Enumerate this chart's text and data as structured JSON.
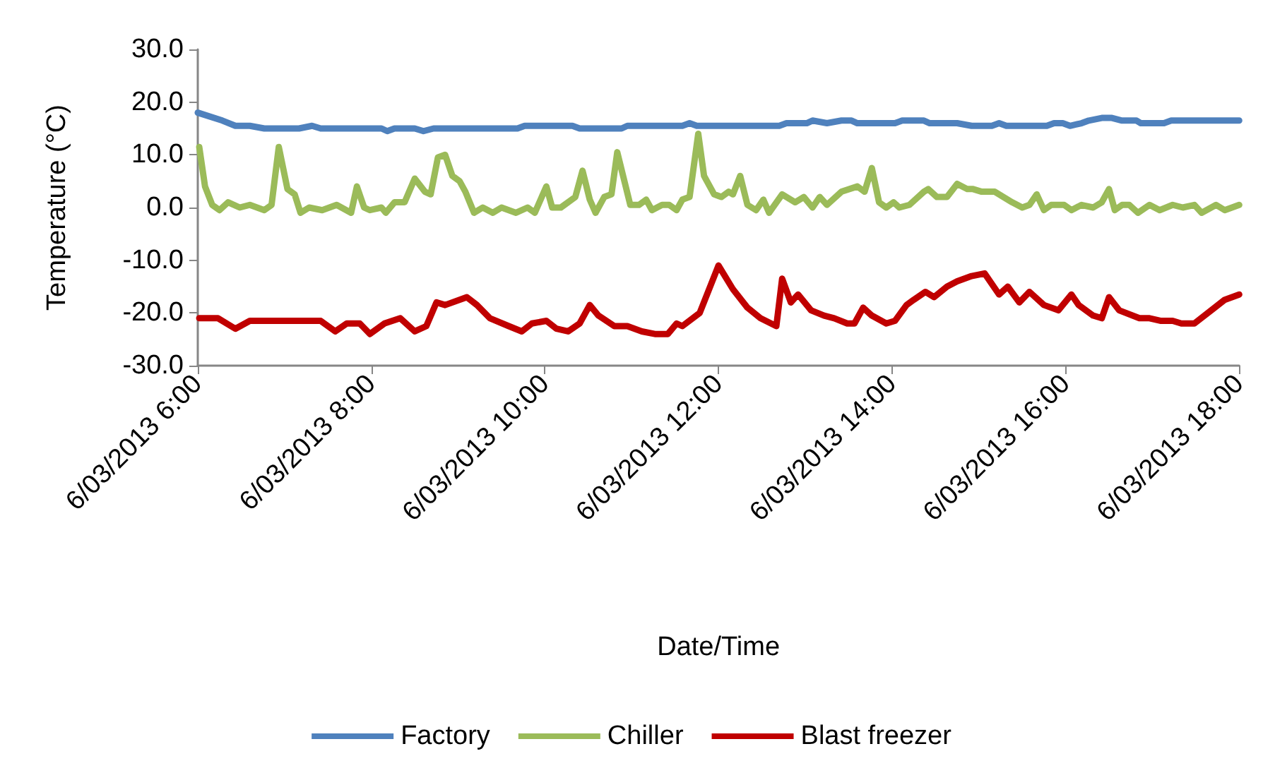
{
  "chart_data": {
    "type": "line",
    "xlabel": "Date/Time",
    "ylabel": "Temperature (°C)",
    "xlim": [
      "2013-03-06T06:00",
      "2013-03-06T18:00"
    ],
    "xticks": [
      {
        "value": "2013-03-06T06:00",
        "label": "6/03/2013 6:00"
      },
      {
        "value": "2013-03-06T08:00",
        "label": "6/03/2013 8:00"
      },
      {
        "value": "2013-03-06T10:00",
        "label": "6/03/2013 10:00"
      },
      {
        "value": "2013-03-06T12:00",
        "label": "6/03/2013 12:00"
      },
      {
        "value": "2013-03-06T14:00",
        "label": "6/03/2013 14:00"
      },
      {
        "value": "2013-03-06T16:00",
        "label": "6/03/2013 16:00"
      },
      {
        "value": "2013-03-06T18:00",
        "label": "6/03/2013 18:00"
      }
    ],
    "ylim": [
      -30,
      30
    ],
    "yticks": [
      {
        "value": -30,
        "label": "-30.0"
      },
      {
        "value": -20,
        "label": "-20.0"
      },
      {
        "value": -10,
        "label": "-10.0"
      },
      {
        "value": 0,
        "label": "0.0"
      },
      {
        "value": 10,
        "label": "10.0"
      },
      {
        "value": 20,
        "label": "20.0"
      },
      {
        "value": 30,
        "label": "30.0"
      }
    ],
    "grid": false,
    "legend": "bottom",
    "marker": "none",
    "line_style": "solid",
    "series": [
      {
        "name": "Factory",
        "color": "#4f81bd",
        "x": [
          "2013-03-06T06:00",
          "2013-03-06T06:17",
          "2013-03-06T06:26",
          "2013-03-06T06:36",
          "2013-03-06T06:46",
          "2013-03-06T07:10",
          "2013-03-06T07:19",
          "2013-03-06T07:25",
          "2013-03-06T08:07",
          "2013-03-06T08:11",
          "2013-03-06T08:16",
          "2013-03-06T08:30",
          "2013-03-06T08:36",
          "2013-03-06T08:43",
          "2013-03-06T09:41",
          "2013-03-06T09:46",
          "2013-03-06T10:19",
          "2013-03-06T10:24",
          "2013-03-06T10:53",
          "2013-03-06T10:57",
          "2013-03-06T11:35",
          "2013-03-06T11:40",
          "2013-03-06T11:45",
          "2013-03-06T12:42",
          "2013-03-06T12:47",
          "2013-03-06T13:01",
          "2013-03-06T13:05",
          "2013-03-06T13:15",
          "2013-03-06T13:25",
          "2013-03-06T13:32",
          "2013-03-06T13:36",
          "2013-03-06T14:02",
          "2013-03-06T14:07",
          "2013-03-06T14:22",
          "2013-03-06T14:26",
          "2013-03-06T14:45",
          "2013-03-06T14:55",
          "2013-03-06T15:09",
          "2013-03-06T15:14",
          "2013-03-06T15:19",
          "2013-03-06T15:47",
          "2013-03-06T15:52",
          "2013-03-06T15:58",
          "2013-03-06T16:03",
          "2013-03-06T16:11",
          "2013-03-06T16:16",
          "2013-03-06T16:25",
          "2013-03-06T16:32",
          "2013-03-06T16:39",
          "2013-03-06T16:49",
          "2013-03-06T16:52",
          "2013-03-06T17:08",
          "2013-03-06T17:13",
          "2013-03-06T18:00"
        ],
        "values": [
          18,
          16.5,
          15.5,
          15.5,
          15,
          15,
          15.5,
          15,
          15,
          14.5,
          15,
          15,
          14.5,
          15,
          15,
          15.5,
          15.5,
          15,
          15,
          15.5,
          15.5,
          16,
          15.5,
          15.5,
          16,
          16,
          16.5,
          16,
          16.5,
          16.5,
          16,
          16,
          16.5,
          16.5,
          16,
          16,
          15.5,
          15.5,
          16,
          15.5,
          15.5,
          16,
          16,
          15.5,
          16,
          16.5,
          17,
          17,
          16.5,
          16.5,
          16,
          16,
          16.5,
          16.5
        ]
      },
      {
        "name": "Chiller",
        "color": "#9bbb59",
        "x": [
          "2013-03-06T06:01",
          "2013-03-06T06:05",
          "2013-03-06T06:10",
          "2013-03-06T06:15",
          "2013-03-06T06:21",
          "2013-03-06T06:29",
          "2013-03-06T06:36",
          "2013-03-06T06:46",
          "2013-03-06T06:51",
          "2013-03-06T06:56",
          "2013-03-06T07:02",
          "2013-03-06T07:07",
          "2013-03-06T07:11",
          "2013-03-06T07:17",
          "2013-03-06T07:26",
          "2013-03-06T07:36",
          "2013-03-06T07:46",
          "2013-03-06T07:50",
          "2013-03-06T07:55",
          "2013-03-06T07:59",
          "2013-03-06T08:07",
          "2013-03-06T08:10",
          "2013-03-06T08:16",
          "2013-03-06T08:23",
          "2013-03-06T08:30",
          "2013-03-06T08:37",
          "2013-03-06T08:41",
          "2013-03-06T08:46",
          "2013-03-06T08:51",
          "2013-03-06T08:56",
          "2013-03-06T09:01",
          "2013-03-06T09:05",
          "2013-03-06T09:11",
          "2013-03-06T09:17",
          "2013-03-06T09:24",
          "2013-03-06T09:30",
          "2013-03-06T09:40",
          "2013-03-06T09:48",
          "2013-03-06T09:53",
          "2013-03-06T10:01",
          "2013-03-06T10:05",
          "2013-03-06T10:11",
          "2013-03-06T10:21",
          "2013-03-06T10:26",
          "2013-03-06T10:31",
          "2013-03-06T10:35",
          "2013-03-06T10:41",
          "2013-03-06T10:46",
          "2013-03-06T10:50",
          "2013-03-06T10:59",
          "2013-03-06T11:05",
          "2013-03-06T11:10",
          "2013-03-06T11:14",
          "2013-03-06T11:21",
          "2013-03-06T11:26",
          "2013-03-06T11:31",
          "2013-03-06T11:35",
          "2013-03-06T11:40",
          "2013-03-06T11:46",
          "2013-03-06T11:50",
          "2013-03-06T11:57",
          "2013-03-06T12:02",
          "2013-03-06T12:07",
          "2013-03-06T12:10",
          "2013-03-06T12:15",
          "2013-03-06T12:20",
          "2013-03-06T12:26",
          "2013-03-06T12:31",
          "2013-03-06T12:35",
          "2013-03-06T12:44",
          "2013-03-06T12:53",
          "2013-03-06T12:59",
          "2013-03-06T13:05",
          "2013-03-06T13:10",
          "2013-03-06T13:15",
          "2013-03-06T13:25",
          "2013-03-06T13:36",
          "2013-03-06T13:41",
          "2013-03-06T13:46",
          "2013-03-06T13:51",
          "2013-03-06T13:56",
          "2013-03-06T14:01",
          "2013-03-06T14:05",
          "2013-03-06T14:12",
          "2013-03-06T14:22",
          "2013-03-06T14:25",
          "2013-03-06T14:31",
          "2013-03-06T14:38",
          "2013-03-06T14:45",
          "2013-03-06T14:52",
          "2013-03-06T14:56",
          "2013-03-06T15:02",
          "2013-03-06T15:11",
          "2013-03-06T15:23",
          "2013-03-06T15:30",
          "2013-03-06T15:35",
          "2013-03-06T15:40",
          "2013-03-06T15:45",
          "2013-03-06T15:50",
          "2013-03-06T15:59",
          "2013-03-06T16:04",
          "2013-03-06T16:11",
          "2013-03-06T16:19",
          "2013-03-06T16:25",
          "2013-03-06T16:30",
          "2013-03-06T16:34",
          "2013-03-06T16:39",
          "2013-03-06T16:44",
          "2013-03-06T16:50",
          "2013-03-06T16:58",
          "2013-03-06T17:05",
          "2013-03-06T17:14",
          "2013-03-06T17:21",
          "2013-03-06T17:29",
          "2013-03-06T17:34",
          "2013-03-06T17:44",
          "2013-03-06T17:50",
          "2013-03-06T18:00"
        ],
        "values": [
          11.5,
          4,
          0.5,
          -0.5,
          1,
          0,
          0.5,
          -0.5,
          0.5,
          11.5,
          3.5,
          2.5,
          -1,
          0,
          -0.5,
          0.5,
          -1,
          4,
          0,
          -0.5,
          0,
          -1,
          1,
          1,
          5.5,
          3,
          2.5,
          9.5,
          10,
          6,
          5,
          3,
          -1,
          0,
          -1,
          0,
          -1,
          0,
          -1,
          4,
          0,
          0,
          2,
          7,
          1.5,
          -1,
          2,
          2.5,
          10.5,
          0.5,
          0.5,
          1.5,
          -0.5,
          0.5,
          0.5,
          -0.5,
          1.5,
          2,
          14,
          6,
          2.5,
          2,
          3,
          2.5,
          6,
          0.5,
          -0.5,
          1.5,
          -1,
          2.5,
          1,
          2,
          0,
          2,
          0.5,
          3,
          4,
          3,
          7.5,
          1,
          0,
          1,
          0,
          0.5,
          3,
          3.5,
          2,
          2,
          4.5,
          3.5,
          3.5,
          3,
          3,
          1,
          0,
          0.5,
          2.5,
          -0.5,
          0.5,
          0.5,
          -0.5,
          0.5,
          0,
          1,
          3.5,
          -0.5,
          0.5,
          0.5,
          -1,
          0.5,
          -0.5,
          0.5,
          0,
          0.5,
          -1,
          0.5,
          -0.5,
          0.5
        ]
      },
      {
        "name": "Blast freezer",
        "color": "#c00000",
        "x": [
          "2013-03-06T06:01",
          "2013-03-06T06:14",
          "2013-03-06T06:26",
          "2013-03-06T06:36",
          "2013-03-06T07:25",
          "2013-03-06T07:35",
          "2013-03-06T07:43",
          "2013-03-06T07:52",
          "2013-03-06T07:59",
          "2013-03-06T08:09",
          "2013-03-06T08:20",
          "2013-03-06T08:30",
          "2013-03-06T08:38",
          "2013-03-06T08:45",
          "2013-03-06T08:51",
          "2013-03-06T09:06",
          "2013-03-06T09:13",
          "2013-03-06T09:22",
          "2013-03-06T09:35",
          "2013-03-06T09:44",
          "2013-03-06T09:51",
          "2013-03-06T10:01",
          "2013-03-06T10:08",
          "2013-03-06T10:16",
          "2013-03-06T10:24",
          "2013-03-06T10:31",
          "2013-03-06T10:37",
          "2013-03-06T10:48",
          "2013-03-06T10:57",
          "2013-03-06T11:07",
          "2013-03-06T11:16",
          "2013-03-06T11:25",
          "2013-03-06T11:31",
          "2013-03-06T11:35",
          "2013-03-06T11:47",
          "2013-03-06T12:00",
          "2013-03-06T12:10",
          "2013-03-06T12:20",
          "2013-03-06T12:29",
          "2013-03-06T12:40",
          "2013-03-06T12:44",
          "2013-03-06T12:50",
          "2013-03-06T12:55",
          "2013-03-06T13:04",
          "2013-03-06T13:13",
          "2013-03-06T13:20",
          "2013-03-06T13:29",
          "2013-03-06T13:34",
          "2013-03-06T13:40",
          "2013-03-06T13:46",
          "2013-03-06T13:56",
          "2013-03-06T14:02",
          "2013-03-06T14:10",
          "2013-03-06T14:15",
          "2013-03-06T14:23",
          "2013-03-06T14:29",
          "2013-03-06T14:38",
          "2013-03-06T14:45",
          "2013-03-06T14:55",
          "2013-03-06T15:04",
          "2013-03-06T15:14",
          "2013-03-06T15:20",
          "2013-03-06T15:28",
          "2013-03-06T15:35",
          "2013-03-06T15:45",
          "2013-03-06T15:55",
          "2013-03-06T16:04",
          "2013-03-06T16:09",
          "2013-03-06T16:19",
          "2013-03-06T16:25",
          "2013-03-06T16:30",
          "2013-03-06T16:37",
          "2013-03-06T16:51",
          "2013-03-06T16:58",
          "2013-03-06T17:06",
          "2013-03-06T17:14",
          "2013-03-06T17:20",
          "2013-03-06T17:29",
          "2013-03-06T17:43",
          "2013-03-06T17:50",
          "2013-03-06T18:00"
        ],
        "values": [
          -21,
          -21,
          -23,
          -21.5,
          -21.5,
          -23.5,
          -22,
          -22,
          -24,
          -22,
          -21,
          -23.5,
          -22.5,
          -18,
          -18.5,
          -17,
          -18.5,
          -21,
          -22.5,
          -23.5,
          -22,
          -21.5,
          -23,
          -23.5,
          -22,
          -18.5,
          -20.5,
          -22.5,
          -22.5,
          -23.5,
          -24,
          -24,
          -22,
          -22.5,
          -20,
          -11,
          -15.5,
          -19,
          -21,
          -22.5,
          -13.5,
          -18,
          -16.5,
          -19.5,
          -20.5,
          -21,
          -22,
          -22,
          -19,
          -20.5,
          -22,
          -21.5,
          -18.5,
          -17.5,
          -16,
          -17,
          -15,
          -14,
          -13,
          -12.5,
          -16.5,
          -15,
          -18,
          -16,
          -18.5,
          -19.5,
          -16.5,
          -18.5,
          -20.5,
          -21,
          -17,
          -19.5,
          -21,
          -21,
          -21.5,
          -21.5,
          -22,
          -22,
          -19,
          -17.5,
          -16.5
        ]
      }
    ]
  }
}
